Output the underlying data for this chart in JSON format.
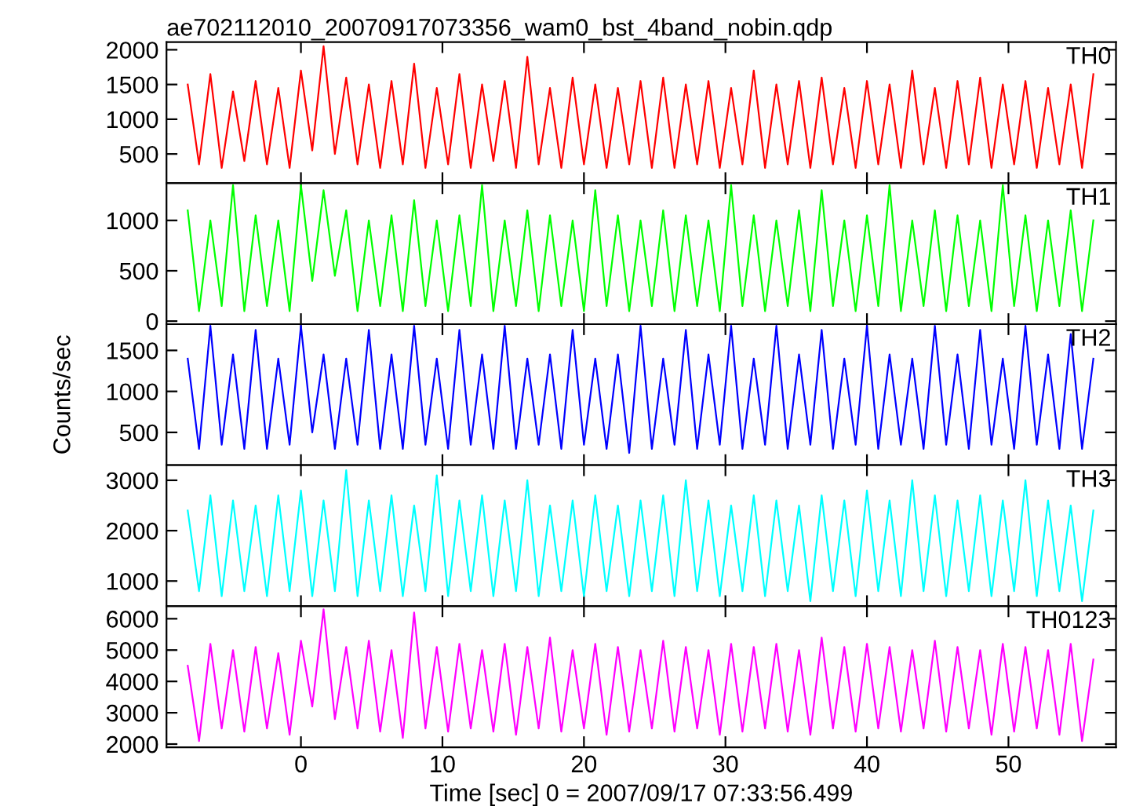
{
  "chart_data": [
    {
      "type": "line",
      "title": "ae702112010_20070917073356_wam0_bst_4band_nobin.qdp",
      "x": [
        -8,
        -7.2,
        -6.4,
        -5.6,
        -4.8,
        -4,
        -3.2,
        -2.4,
        -1.6,
        -0.8,
        0,
        0.8,
        1.6,
        2.4,
        3.2,
        4,
        4.8,
        5.6,
        6.4,
        7.2,
        8,
        8.8,
        9.6,
        10.4,
        11.2,
        12,
        12.8,
        13.6,
        14.4,
        15.2,
        16,
        16.8,
        17.6,
        18.4,
        19.2,
        20,
        20.8,
        21.6,
        22.4,
        23.2,
        24,
        24.8,
        25.6,
        26.4,
        27.2,
        28,
        28.8,
        29.6,
        30.4,
        31.2,
        32,
        32.8,
        33.6,
        34.4,
        35.2,
        36,
        36.8,
        37.6,
        38.4,
        39.2,
        40,
        40.8,
        41.6,
        42.4,
        43.2,
        44,
        44.8,
        45.6,
        46.4,
        47.2,
        48,
        48.8,
        49.6,
        50.4,
        51.2,
        52,
        52.8,
        53.6,
        54.4,
        55.2,
        56
      ],
      "series": [
        {
          "name": "TH0",
          "color": "#ff0000",
          "values": [
            1500,
            350,
            1650,
            300,
            1400,
            400,
            1550,
            350,
            1450,
            300,
            1700,
            550,
            2050,
            500,
            1600,
            350,
            1500,
            300,
            1550,
            350,
            1800,
            300,
            1450,
            350,
            1650,
            300,
            1500,
            400,
            1550,
            300,
            1900,
            350,
            1450,
            300,
            1600,
            350,
            1500,
            300,
            1450,
            350,
            1550,
            300,
            1600,
            300,
            1500,
            350,
            1550,
            300,
            1450,
            350,
            1700,
            300,
            1500,
            350,
            1550,
            300,
            1600,
            350,
            1450,
            300,
            1550,
            350,
            1500,
            300,
            1700,
            350,
            1450,
            300,
            1550,
            350,
            1600,
            300,
            1500,
            350,
            1550,
            300,
            1450,
            350,
            1500,
            300,
            1650
          ]
        }
      ],
      "xlim": [
        -9.5,
        57.6
      ],
      "xticks": [
        0,
        10,
        20,
        30,
        40,
        50
      ],
      "ylim": [
        80,
        2110
      ],
      "yticks": [
        500,
        1000,
        1500,
        2000
      ],
      "tick_labels": "y"
    },
    {
      "type": "line",
      "x": [
        -8,
        -7.2,
        -6.4,
        -5.6,
        -4.8,
        -4,
        -3.2,
        -2.4,
        -1.6,
        -0.8,
        0,
        0.8,
        1.6,
        2.4,
        3.2,
        4,
        4.8,
        5.6,
        6.4,
        7.2,
        8,
        8.8,
        9.6,
        10.4,
        11.2,
        12,
        12.8,
        13.6,
        14.4,
        15.2,
        16,
        16.8,
        17.6,
        18.4,
        19.2,
        20,
        20.8,
        21.6,
        22.4,
        23.2,
        24,
        24.8,
        25.6,
        26.4,
        27.2,
        28,
        28.8,
        29.6,
        30.4,
        31.2,
        32,
        32.8,
        33.6,
        34.4,
        35.2,
        36,
        36.8,
        37.6,
        38.4,
        39.2,
        40,
        40.8,
        41.6,
        42.4,
        43.2,
        44,
        44.8,
        45.6,
        46.4,
        47.2,
        48,
        48.8,
        49.6,
        50.4,
        51.2,
        52,
        52.8,
        53.6,
        54.4,
        55.2,
        56
      ],
      "series": [
        {
          "name": "TH1",
          "color": "#00ff00",
          "values": [
            1100,
            100,
            1000,
            150,
            1350,
            100,
            1050,
            150,
            1000,
            100,
            1350,
            400,
            1300,
            450,
            1100,
            100,
            1000,
            150,
            1050,
            100,
            1200,
            150,
            1000,
            100,
            1050,
            150,
            1350,
            100,
            1000,
            150,
            1100,
            100,
            1050,
            150,
            1000,
            100,
            1300,
            150,
            1050,
            100,
            1000,
            150,
            1100,
            100,
            1050,
            150,
            1000,
            100,
            1350,
            150,
            1050,
            100,
            1000,
            150,
            1100,
            100,
            1300,
            150,
            1000,
            100,
            1050,
            150,
            1350,
            100,
            1000,
            150,
            1100,
            100,
            1050,
            150,
            1000,
            100,
            1350,
            150,
            1050,
            100,
            1000,
            150,
            1100,
            100,
            1000
          ]
        }
      ],
      "xlim": [
        -9.5,
        57.6
      ],
      "xticks": [
        0,
        10,
        20,
        30,
        40,
        50
      ],
      "ylim": [
        -30,
        1370
      ],
      "yticks": [
        0,
        500,
        1000
      ],
      "tick_labels": "y"
    },
    {
      "type": "line",
      "ylabel": "Counts/sec",
      "x": [
        -8,
        -7.2,
        -6.4,
        -5.6,
        -4.8,
        -4,
        -3.2,
        -2.4,
        -1.6,
        -0.8,
        0,
        0.8,
        1.6,
        2.4,
        3.2,
        4,
        4.8,
        5.6,
        6.4,
        7.2,
        8,
        8.8,
        9.6,
        10.4,
        11.2,
        12,
        12.8,
        13.6,
        14.4,
        15.2,
        16,
        16.8,
        17.6,
        18.4,
        19.2,
        20,
        20.8,
        21.6,
        22.4,
        23.2,
        24,
        24.8,
        25.6,
        26.4,
        27.2,
        28,
        28.8,
        29.6,
        30.4,
        31.2,
        32,
        32.8,
        33.6,
        34.4,
        35.2,
        36,
        36.8,
        37.6,
        38.4,
        39.2,
        40,
        40.8,
        41.6,
        42.4,
        43.2,
        44,
        44.8,
        45.6,
        46.4,
        47.2,
        48,
        48.8,
        49.6,
        50.4,
        51.2,
        52,
        52.8,
        53.6,
        54.4,
        55.2,
        56
      ],
      "series": [
        {
          "name": "TH2",
          "color": "#0000ff",
          "values": [
            1400,
            300,
            1800,
            350,
            1450,
            300,
            1750,
            300,
            1400,
            350,
            1800,
            500,
            1450,
            300,
            1400,
            350,
            1750,
            300,
            1450,
            300,
            1800,
            350,
            1400,
            300,
            1750,
            350,
            1450,
            300,
            1800,
            300,
            1400,
            350,
            1450,
            300,
            1750,
            350,
            1400,
            300,
            1450,
            250,
            1800,
            300,
            1400,
            350,
            1750,
            300,
            1450,
            350,
            1800,
            300,
            1400,
            350,
            1800,
            300,
            1450,
            350,
            1750,
            300,
            1400,
            350,
            1800,
            300,
            1450,
            350,
            1400,
            300,
            1800,
            350,
            1450,
            300,
            1750,
            350,
            1400,
            300,
            1800,
            350,
            1450,
            300,
            1700,
            300,
            1400
          ]
        }
      ],
      "xlim": [
        -9.5,
        57.6
      ],
      "xticks": [
        0,
        10,
        20,
        30,
        40,
        50
      ],
      "ylim": [
        100,
        1820
      ],
      "yticks": [
        500,
        1000,
        1500
      ],
      "tick_labels": "y"
    },
    {
      "type": "line",
      "x": [
        -8,
        -7.2,
        -6.4,
        -5.6,
        -4.8,
        -4,
        -3.2,
        -2.4,
        -1.6,
        -0.8,
        0,
        0.8,
        1.6,
        2.4,
        3.2,
        4,
        4.8,
        5.6,
        6.4,
        7.2,
        8,
        8.8,
        9.6,
        10.4,
        11.2,
        12,
        12.8,
        13.6,
        14.4,
        15.2,
        16,
        16.8,
        17.6,
        18.4,
        19.2,
        20,
        20.8,
        21.6,
        22.4,
        23.2,
        24,
        24.8,
        25.6,
        26.4,
        27.2,
        28,
        28.8,
        29.6,
        30.4,
        31.2,
        32,
        32.8,
        33.6,
        34.4,
        35.2,
        36,
        36.8,
        37.6,
        38.4,
        39.2,
        40,
        40.8,
        41.6,
        42.4,
        43.2,
        44,
        44.8,
        45.6,
        46.4,
        47.2,
        48,
        48.8,
        49.6,
        50.4,
        51.2,
        52,
        52.8,
        53.6,
        54.4,
        55.2,
        56
      ],
      "series": [
        {
          "name": "TH3",
          "color": "#00ffff",
          "values": [
            2400,
            800,
            2700,
            700,
            2600,
            800,
            2500,
            700,
            2700,
            800,
            2800,
            700,
            2600,
            800,
            3200,
            700,
            2600,
            800,
            2700,
            700,
            2500,
            800,
            3100,
            700,
            2600,
            800,
            2700,
            700,
            2600,
            800,
            3000,
            700,
            2500,
            800,
            2600,
            700,
            2700,
            800,
            2500,
            700,
            2600,
            800,
            2700,
            700,
            3000,
            800,
            2600,
            700,
            2500,
            800,
            2700,
            700,
            2600,
            800,
            2500,
            600,
            2700,
            800,
            2600,
            700,
            2800,
            800,
            2600,
            700,
            3000,
            800,
            2700,
            700,
            2600,
            800,
            2700,
            700,
            2600,
            800,
            3000,
            700,
            2600,
            800,
            2500,
            600,
            2400
          ]
        }
      ],
      "xlim": [
        -9.5,
        57.6
      ],
      "xticks": [
        0,
        10,
        20,
        30,
        40,
        50
      ],
      "ylim": [
        500,
        3300
      ],
      "yticks": [
        1000,
        2000,
        3000
      ],
      "tick_labels": "y"
    },
    {
      "type": "line",
      "xlabel": "Time [sec] 0 = 2007/09/17 07:33:56.499",
      "x": [
        -8,
        -7.2,
        -6.4,
        -5.6,
        -4.8,
        -4,
        -3.2,
        -2.4,
        -1.6,
        -0.8,
        0,
        0.8,
        1.6,
        2.4,
        3.2,
        4,
        4.8,
        5.6,
        6.4,
        7.2,
        8,
        8.8,
        9.6,
        10.4,
        11.2,
        12,
        12.8,
        13.6,
        14.4,
        15.2,
        16,
        16.8,
        17.6,
        18.4,
        19.2,
        20,
        20.8,
        21.6,
        22.4,
        23.2,
        24,
        24.8,
        25.6,
        26.4,
        27.2,
        28,
        28.8,
        29.6,
        30.4,
        31.2,
        32,
        32.8,
        33.6,
        34.4,
        35.2,
        36,
        36.8,
        37.6,
        38.4,
        39.2,
        40,
        40.8,
        41.6,
        42.4,
        43.2,
        44,
        44.8,
        45.6,
        46.4,
        47.2,
        48,
        48.8,
        49.6,
        50.4,
        51.2,
        52,
        52.8,
        53.6,
        54.4,
        55.2,
        56
      ],
      "series": [
        {
          "name": "TH0123",
          "color": "#ff00ff",
          "values": [
            4500,
            2100,
            5200,
            2500,
            5000,
            2400,
            5100,
            2500,
            4900,
            2300,
            5300,
            3200,
            6300,
            2800,
            5100,
            2500,
            5300,
            2400,
            5000,
            2200,
            6200,
            2500,
            5100,
            2400,
            5200,
            2500,
            5000,
            2400,
            5200,
            2300,
            5100,
            2500,
            5400,
            2400,
            5000,
            2500,
            5200,
            2300,
            5100,
            2400,
            5000,
            2500,
            5300,
            2400,
            5100,
            2500,
            5000,
            2300,
            5200,
            2400,
            5100,
            2500,
            5200,
            2400,
            5000,
            2300,
            5400,
            2500,
            5100,
            2400,
            5200,
            2500,
            5100,
            2400,
            5000,
            2500,
            5300,
            2400,
            5100,
            2500,
            5000,
            2300,
            5200,
            2400,
            5100,
            2500,
            5000,
            2300,
            5200,
            2100,
            4700
          ]
        }
      ],
      "xlim": [
        -9.5,
        57.6
      ],
      "xticks": [
        0,
        10,
        20,
        30,
        40,
        50
      ],
      "ylim": [
        1900,
        6400
      ],
      "yticks": [
        2000,
        3000,
        4000,
        5000,
        6000
      ]
    }
  ]
}
